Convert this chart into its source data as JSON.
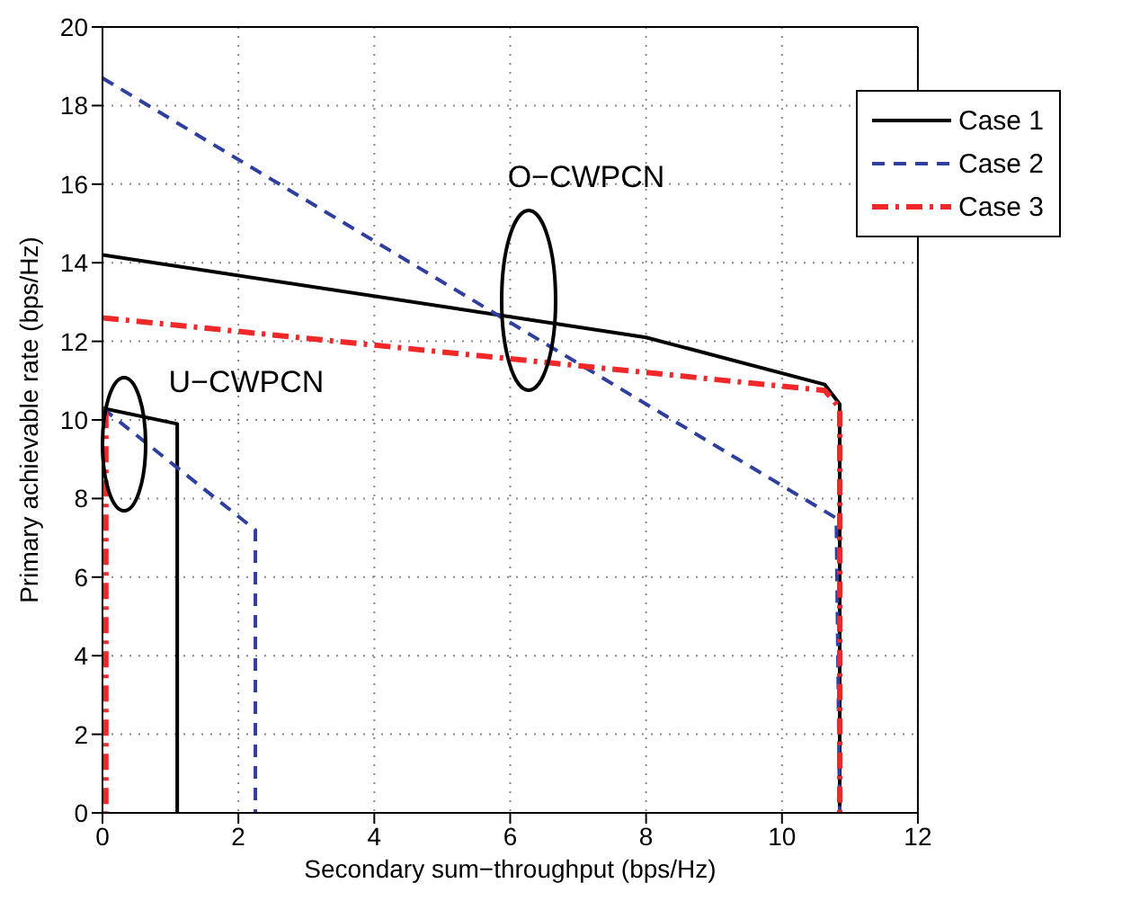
{
  "chart_data": {
    "type": "line",
    "xlabel": "Secondary sum−throughput (bps/Hz)",
    "ylabel": "Primary achievable rate (bps/Hz)",
    "xlim": [
      0,
      12
    ],
    "xticks": [
      0,
      2,
      4,
      6,
      8,
      10,
      12
    ],
    "ylim": [
      0,
      20
    ],
    "yticks": [
      0,
      2,
      4,
      6,
      8,
      10,
      12,
      14,
      16,
      18,
      20
    ],
    "grid": true,
    "legend": "top right",
    "marker": "none",
    "series": [
      {
        "name": "Case 1",
        "color": "#000000",
        "line_style": "solid",
        "x": [
          0,
          1.1,
          1.1,
          null,
          0,
          8,
          10.63,
          10.85,
          10.85
        ],
        "values": [
          10.3,
          9.9,
          0,
          null,
          14.2,
          12.1,
          10.9,
          10.4,
          0
        ]
      },
      {
        "name": "Case 2",
        "color": "#2e3f9e",
        "line_style": "dashed",
        "x": [
          0,
          2.25,
          2.25,
          null,
          0,
          10.8,
          10.85
        ],
        "values": [
          10.3,
          7.2,
          0,
          null,
          18.7,
          7.5,
          0
        ]
      },
      {
        "name": "Case 3",
        "color": "#f0282a",
        "line_style": "dashdot",
        "x": [
          0.05,
          0.05,
          null,
          0,
          10.63,
          10.85,
          10.85
        ],
        "values": [
          10.2,
          0,
          null,
          12.6,
          10.75,
          10.3,
          0
        ]
      }
    ],
    "annotations": [
      "O−CWPCN",
      "U−CWPCN"
    ]
  }
}
